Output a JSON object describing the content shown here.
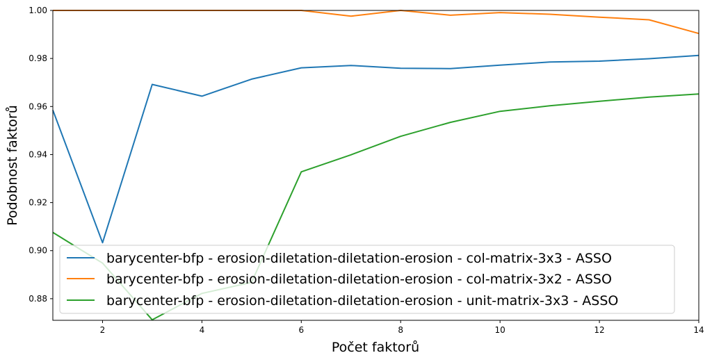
{
  "chart_data": {
    "type": "line",
    "title": "",
    "xlabel": "Počet faktorů",
    "ylabel": "Podobnost faktorů",
    "xlim": [
      1,
      14
    ],
    "ylim": [
      0.871,
      1.0
    ],
    "xticks": [
      2,
      4,
      6,
      8,
      10,
      12,
      14
    ],
    "xtick_labels": [
      "2",
      "4",
      "6",
      "8",
      "10",
      "12",
      "14"
    ],
    "yticks": [
      0.88,
      0.9,
      0.92,
      0.94,
      0.96,
      0.98,
      1.0
    ],
    "ytick_labels": [
      "0.88",
      "0.90",
      "0.92",
      "0.94",
      "0.96",
      "0.98",
      "1.00"
    ],
    "grid": false,
    "legend_position": "bottom-center",
    "x": [
      1,
      2,
      3,
      4,
      5,
      6,
      7,
      8,
      9,
      10,
      11,
      12,
      13,
      14
    ],
    "series": [
      {
        "name": "barycenter-bfp - erosion-diletation-diletation-erosion - col-matrix-3x3 - ASSO",
        "color": "#1f77b4",
        "values": [
          0.9585,
          0.9033,
          0.9692,
          0.9643,
          0.9714,
          0.9761,
          0.9771,
          0.9759,
          0.9758,
          0.9772,
          0.9785,
          0.9789,
          0.9799,
          0.9813
        ]
      },
      {
        "name": "barycenter-bfp - erosion-diletation-diletation-erosion - col-matrix-3x2 - ASSO",
        "color": "#ff7f0e",
        "values": [
          1.0,
          1.0,
          1.0,
          1.0,
          1.0,
          1.0,
          0.9976,
          1.0,
          0.998,
          0.9991,
          0.9984,
          0.9972,
          0.9961,
          0.9904
        ]
      },
      {
        "name": "barycenter-bfp - erosion-diletation-diletation-erosion - unit-matrix-3x3 - ASSO",
        "color": "#2ca02c",
        "values": [
          0.9076,
          0.8948,
          0.8712,
          0.8822,
          0.8868,
          0.9328,
          0.9399,
          0.9476,
          0.9534,
          0.958,
          0.9603,
          0.9622,
          0.9639,
          0.9652
        ]
      }
    ]
  }
}
